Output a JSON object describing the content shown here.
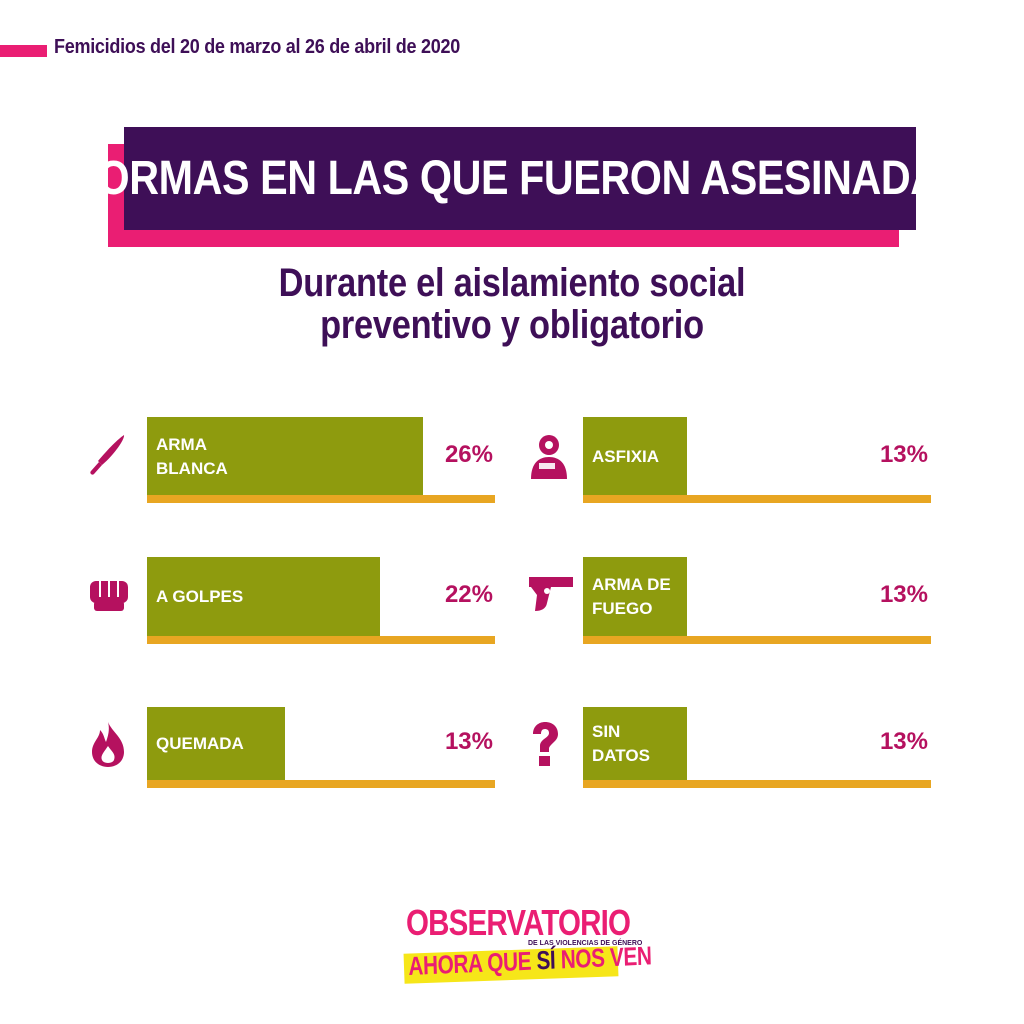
{
  "header": {
    "text": "Femicidios del 20 de marzo al 26 de abril de 2020"
  },
  "title": "FORMAS EN LAS QUE FUERON ASESINADAS",
  "subtitle": {
    "line1": "Durante el aislamiento social",
    "line2": "preventivo y obligatorio"
  },
  "colors": {
    "accent": "#ea1e73",
    "purple": "#3e0f57",
    "bar": "#8e9b0e",
    "baseline": "#e8a622",
    "pct": "#b5115f"
  },
  "chart_data": {
    "type": "bar",
    "categories": [
      "ARMA BLANCA",
      "ASFIXIA",
      "A GOLPES",
      "ARMA DE FUEGO",
      "QUEMADA",
      "SIN DATOS"
    ],
    "values": [
      26,
      13,
      22,
      13,
      13,
      13
    ],
    "unit": "%",
    "items": [
      {
        "label": "ARMA\nBLANCA",
        "value": 26,
        "pct": "26%",
        "icon": "knife-icon"
      },
      {
        "label": "ASFIXIA",
        "value": 13,
        "pct": "13%",
        "icon": "asphyxia-icon"
      },
      {
        "label": "A GOLPES",
        "value": 22,
        "pct": "22%",
        "icon": "fist-icon"
      },
      {
        "label": "ARMA DE\nFUEGO",
        "value": 13,
        "pct": "13%",
        "icon": "gun-icon"
      },
      {
        "label": "QUEMADA",
        "value": 13,
        "pct": "13%",
        "icon": "fire-icon"
      },
      {
        "label": "SIN\nDATOS",
        "value": 13,
        "pct": "13%",
        "icon": "question-icon"
      }
    ]
  },
  "logo": {
    "line1": "OBSERVATORIO",
    "line2": "DE LAS VIOLENCIAS DE GÉNERO",
    "line3a": "AHORA QUE ",
    "line3b": "SÍ",
    "line3c": " NOS VEN"
  }
}
